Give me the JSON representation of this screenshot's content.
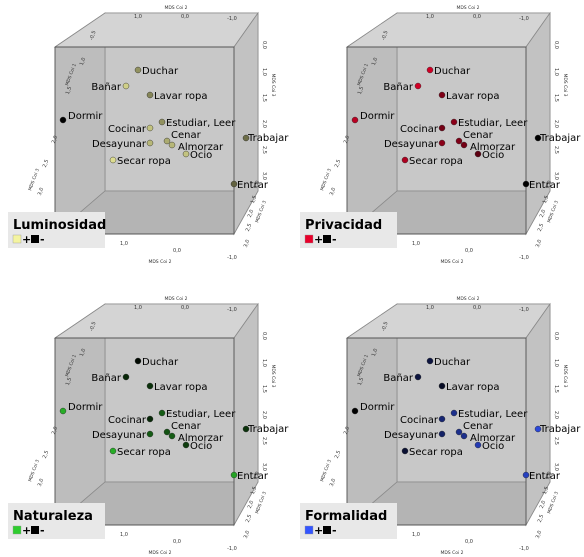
{
  "chart_data": [
    {
      "type": "scatter",
      "legend": {
        "title": "Luminosidad",
        "plus": "+",
        "minus": "-"
      },
      "high_color": "#f4f4a0",
      "low_color": "#000000",
      "points": [
        {
          "label": "Duchar",
          "v": 0.6
        },
        {
          "label": "Bañar",
          "v": 0.85
        },
        {
          "label": "Lavar ropa",
          "v": 0.55
        },
        {
          "label": "Dormir",
          "v": 0.0
        },
        {
          "label": "Cocinar",
          "v": 0.8
        },
        {
          "label": "Estudiar, Leer",
          "v": 0.6
        },
        {
          "label": "Cenar",
          "v": 0.7
        },
        {
          "label": "Desayunar",
          "v": 0.75
        },
        {
          "label": "Almorzar",
          "v": 0.75
        },
        {
          "label": "Ocio",
          "v": 0.8
        },
        {
          "label": "Secar ropa",
          "v": 0.9
        },
        {
          "label": "Trabajar",
          "v": 0.45
        },
        {
          "label": "Entrar",
          "v": 0.4
        }
      ]
    },
    {
      "type": "scatter",
      "legend": {
        "title": "Privacidad",
        "plus": "+",
        "minus": "-"
      },
      "high_color": "#e8002a",
      "low_color": "#000000",
      "points": [
        {
          "label": "Duchar",
          "v": 0.9
        },
        {
          "label": "Bañar",
          "v": 0.9
        },
        {
          "label": "Lavar ropa",
          "v": 0.55
        },
        {
          "label": "Dormir",
          "v": 0.8
        },
        {
          "label": "Cocinar",
          "v": 0.5
        },
        {
          "label": "Estudiar, Leer",
          "v": 0.6
        },
        {
          "label": "Cenar",
          "v": 0.55
        },
        {
          "label": "Desayunar",
          "v": 0.6
        },
        {
          "label": "Almorzar",
          "v": 0.5
        },
        {
          "label": "Ocio",
          "v": 0.4
        },
        {
          "label": "Secar ropa",
          "v": 0.75
        },
        {
          "label": "Trabajar",
          "v": 0.0
        },
        {
          "label": "Entrar",
          "v": 0.0
        }
      ]
    },
    {
      "type": "scatter",
      "legend": {
        "title": "Naturaleza",
        "plus": "+",
        "minus": "-"
      },
      "high_color": "#2ecc2e",
      "low_color": "#000000",
      "points": [
        {
          "label": "Duchar",
          "v": 0.05
        },
        {
          "label": "Bañar",
          "v": 0.2
        },
        {
          "label": "Lavar ropa",
          "v": 0.25
        },
        {
          "label": "Dormir",
          "v": 0.85
        },
        {
          "label": "Cocinar",
          "v": 0.2
        },
        {
          "label": "Estudiar, Leer",
          "v": 0.45
        },
        {
          "label": "Cenar",
          "v": 0.4
        },
        {
          "label": "Desayunar",
          "v": 0.45
        },
        {
          "label": "Almorzar",
          "v": 0.45
        },
        {
          "label": "Ocio",
          "v": 0.3
        },
        {
          "label": "Secar ropa",
          "v": 0.85
        },
        {
          "label": "Trabajar",
          "v": 0.25
        },
        {
          "label": "Entrar",
          "v": 0.8
        }
      ]
    },
    {
      "type": "scatter",
      "legend": {
        "title": "Formalidad",
        "plus": "+",
        "minus": "-"
      },
      "high_color": "#3355ff",
      "low_color": "#000000",
      "points": [
        {
          "label": "Duchar",
          "v": 0.25
        },
        {
          "label": "Bañar",
          "v": 0.25
        },
        {
          "label": "Lavar ropa",
          "v": 0.15
        },
        {
          "label": "Dormir",
          "v": 0.0
        },
        {
          "label": "Cocinar",
          "v": 0.45
        },
        {
          "label": "Estudiar, Leer",
          "v": 0.55
        },
        {
          "label": "Cenar",
          "v": 0.55
        },
        {
          "label": "Desayunar",
          "v": 0.4
        },
        {
          "label": "Almorzar",
          "v": 0.55
        },
        {
          "label": "Ocio",
          "v": 0.7
        },
        {
          "label": "Secar ropa",
          "v": 0.2
        },
        {
          "label": "Trabajar",
          "v": 0.85
        },
        {
          "label": "Entrar",
          "v": 0.75
        }
      ]
    }
  ],
  "axes": {
    "dim1_label": "MDS Coi 1",
    "dim2_label": "MDS Coi 2",
    "dim3_label": "MDS Coi 3",
    "dim1_ticks": [
      "1,0",
      "0,0",
      "-1,0"
    ],
    "dim2_ticks": [
      "1,0",
      "0,0",
      "-1,0"
    ],
    "dim3_ticks": [
      "0,0",
      "1,0",
      "1,5",
      "2,0",
      "2,5",
      "3,0"
    ],
    "left_ticks": [
      "-0,5",
      "1,0",
      "1,5",
      "2,0",
      "2,5",
      "3,0"
    ]
  }
}
